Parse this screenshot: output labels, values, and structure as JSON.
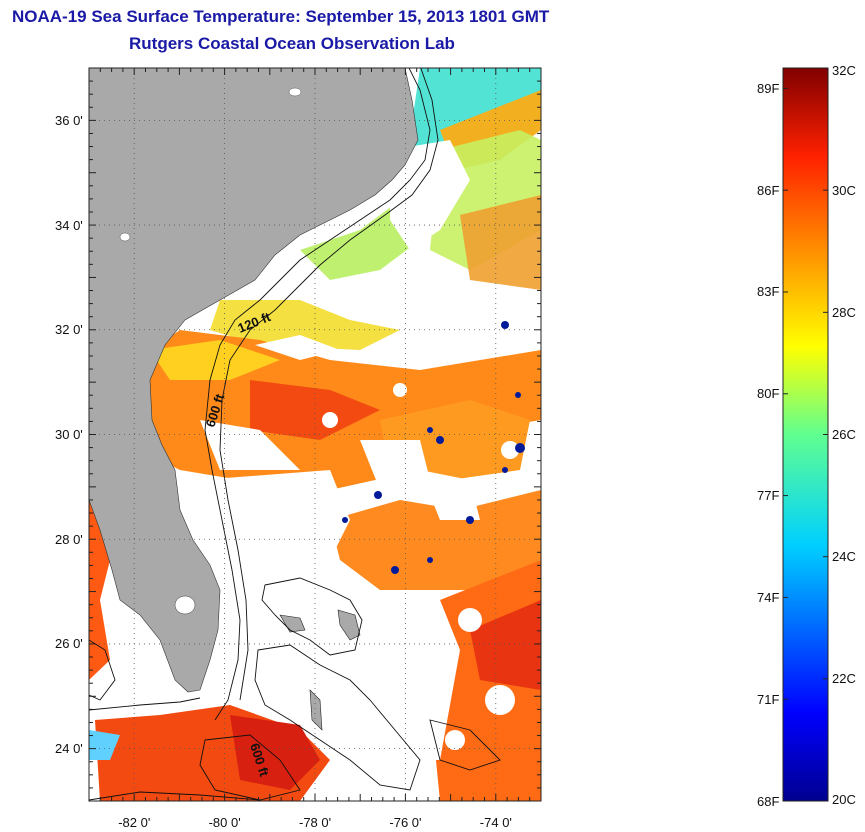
{
  "title": {
    "line1": "NOAA-19 Sea Surface Temperature:  September 15, 2013 1801 GMT",
    "line2": "Rutgers Coastal Ocean Observation Lab"
  },
  "map": {
    "lon_range": [
      -83,
      -73
    ],
    "lat_range": [
      23,
      37
    ],
    "lat_ticks": [
      {
        "value": 36,
        "label": "36 0'"
      },
      {
        "value": 34,
        "label": "34 0'"
      },
      {
        "value": 32,
        "label": "32 0'"
      },
      {
        "value": 30,
        "label": "30 0'"
      },
      {
        "value": 28,
        "label": "28 0'"
      },
      {
        "value": 26,
        "label": "26 0'"
      },
      {
        "value": 24,
        "label": "24 0'"
      }
    ],
    "lon_ticks": [
      {
        "value": -82,
        "label": "-82 0'"
      },
      {
        "value": -80,
        "label": "-80 0'"
      },
      {
        "value": -78,
        "label": "-78 0'"
      },
      {
        "value": -76,
        "label": "-76 0'"
      },
      {
        "value": -74,
        "label": "-74 0'"
      }
    ],
    "contour_labels": {
      "c120": "120 ft",
      "c600a": "600 ft",
      "c600b": "600 ft"
    },
    "colors": {
      "land": "#a9a9a9",
      "cloud": "#ffffff"
    }
  },
  "colorbar": {
    "min_c": 20,
    "max_c": 32,
    "celsius_labels": [
      "32C",
      "30C",
      "28C",
      "26C",
      "24C",
      "22C",
      "20C"
    ],
    "fahrenheit_labels": [
      "89F",
      "86F",
      "83F",
      "80F",
      "77F",
      "74F",
      "71F",
      "68F"
    ],
    "fahrenheit_values": [
      89,
      86,
      83,
      80,
      77,
      74,
      71,
      68
    ]
  }
}
